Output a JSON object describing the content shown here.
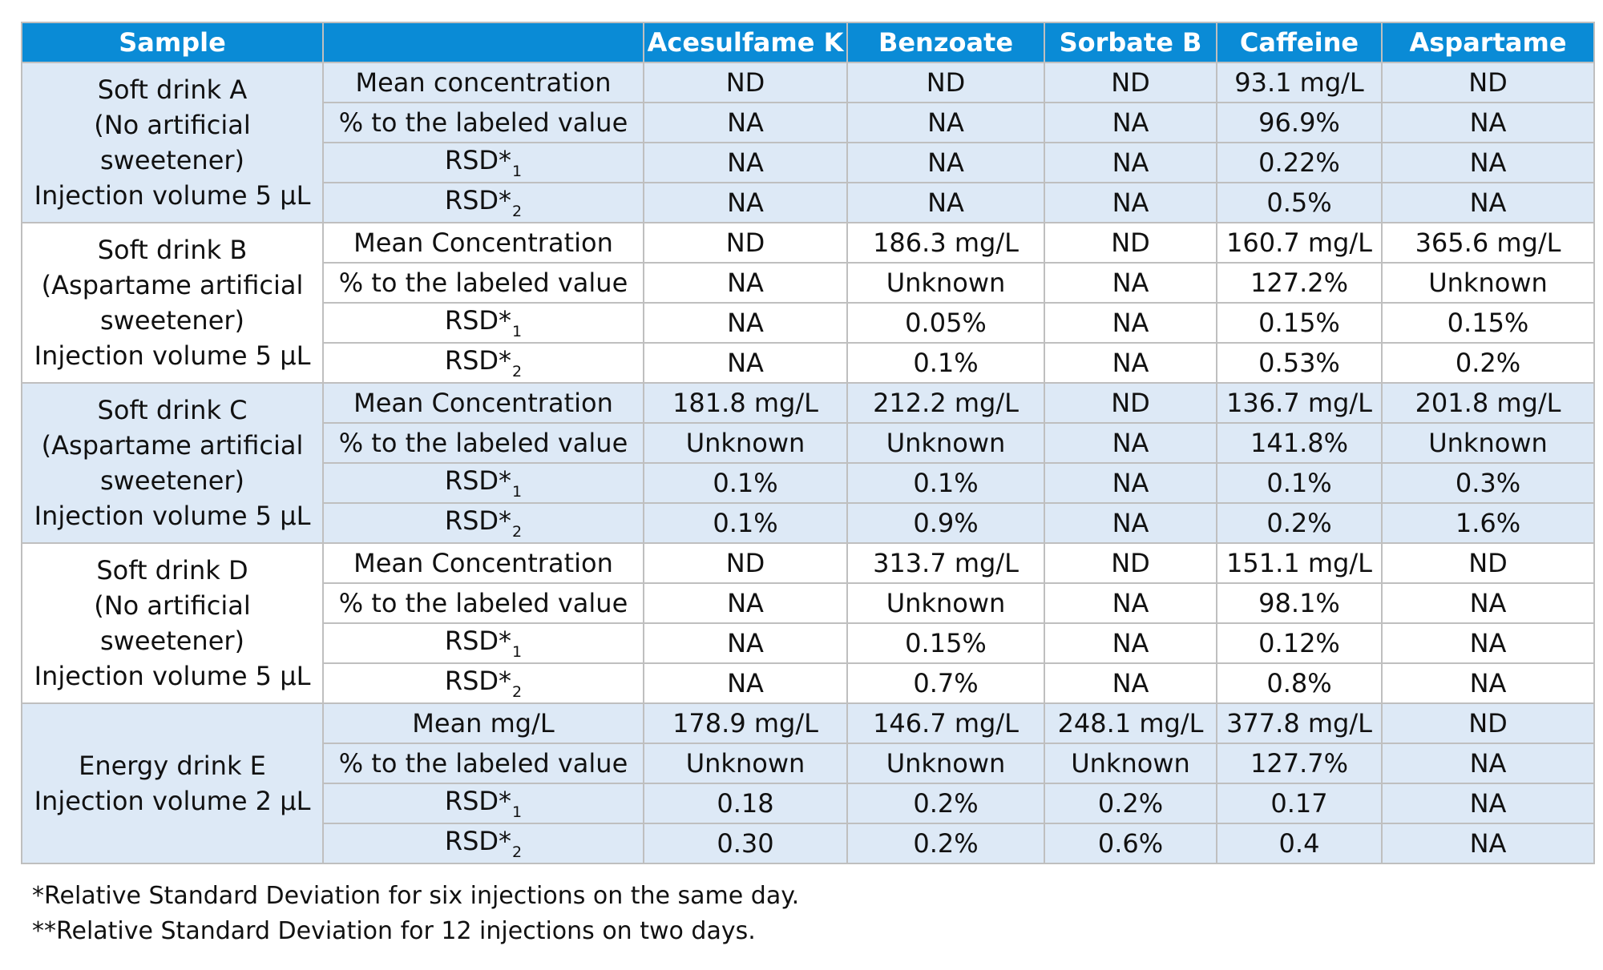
{
  "header": [
    "Sample",
    "",
    "Acesulfame K",
    "Benzoate",
    "Sorbate B",
    "Caffeine",
    "Aspartame"
  ],
  "groups": [
    {
      "sample_lines": [
        "Soft drink A",
        "(No artificial",
        "sweetener)",
        "Injection volume 5 µL"
      ],
      "band": "shaded",
      "rows": [
        {
          "label": "Mean concentration",
          "sub": "",
          "values": [
            "ND",
            "ND",
            "ND",
            "93.1 mg/L",
            "ND"
          ]
        },
        {
          "label": "% to the labeled value",
          "sub": "",
          "values": [
            "NA",
            "NA",
            "NA",
            "96.9%",
            "NA"
          ]
        },
        {
          "label": "RSD*",
          "sub": "1",
          "values": [
            "NA",
            "NA",
            "NA",
            "0.22%",
            "NA"
          ]
        },
        {
          "label": "RSD*",
          "sub": "2",
          "values": [
            "NA",
            "NA",
            "NA",
            "0.5%",
            "NA"
          ]
        }
      ]
    },
    {
      "sample_lines": [
        "Soft drink B",
        "(Aspartame artificial",
        "sweetener)",
        "Injection volume 5 µL"
      ],
      "band": "white",
      "rows": [
        {
          "label": "Mean Concentration",
          "sub": "",
          "values": [
            "ND",
            "186.3 mg/L",
            "ND",
            "160.7 mg/L",
            "365.6 mg/L"
          ]
        },
        {
          "label": "% to the labeled value",
          "sub": "",
          "values": [
            "NA",
            "Unknown",
            "NA",
            "127.2%",
            "Unknown"
          ]
        },
        {
          "label": "RSD*",
          "sub": "1",
          "values": [
            "NA",
            "0.05%",
            "NA",
            "0.15%",
            "0.15%"
          ]
        },
        {
          "label": "RSD*",
          "sub": "2",
          "values": [
            "NA",
            "0.1%",
            "NA",
            "0.53%",
            "0.2%"
          ]
        }
      ]
    },
    {
      "sample_lines": [
        "Soft drink C",
        "(Aspartame artificial",
        "sweetener)",
        "Injection volume 5 µL"
      ],
      "band": "shaded",
      "rows": [
        {
          "label": "Mean Concentration",
          "sub": "",
          "values": [
            "181.8 mg/L",
            "212.2 mg/L",
            "ND",
            "136.7 mg/L",
            "201.8 mg/L"
          ]
        },
        {
          "label": "% to the labeled value",
          "sub": "",
          "values": [
            "Unknown",
            "Unknown",
            "NA",
            "141.8%",
            "Unknown"
          ]
        },
        {
          "label": "RSD*",
          "sub": "1",
          "values": [
            "0.1%",
            "0.1%",
            "NA",
            "0.1%",
            "0.3%"
          ]
        },
        {
          "label": "RSD*",
          "sub": "2",
          "values": [
            "0.1%",
            "0.9%",
            "NA",
            "0.2%",
            "1.6%"
          ]
        }
      ]
    },
    {
      "sample_lines": [
        "Soft drink D",
        "(No artificial",
        "sweetener)",
        "Injection volume 5 µL"
      ],
      "band": "white",
      "rows": [
        {
          "label": "Mean Concentration",
          "sub": "",
          "values": [
            "ND",
            "313.7 mg/L",
            "ND",
            "151.1 mg/L",
            "ND"
          ]
        },
        {
          "label": "% to the labeled value",
          "sub": "",
          "values": [
            "NA",
            "Unknown",
            "NA",
            "98.1%",
            "NA"
          ]
        },
        {
          "label": "RSD*",
          "sub": "1",
          "values": [
            "NA",
            "0.15%",
            "NA",
            "0.12%",
            "NA"
          ]
        },
        {
          "label": "RSD*",
          "sub": "2",
          "values": [
            "NA",
            "0.7%",
            "NA",
            "0.8%",
            "NA"
          ]
        }
      ]
    },
    {
      "sample_lines": [
        "Energy drink E",
        "Injection volume 2 µL"
      ],
      "band": "shaded",
      "rows": [
        {
          "label": "Mean mg/L",
          "sub": "",
          "values": [
            "178.9 mg/L",
            "146.7 mg/L",
            "248.1 mg/L",
            "377.8 mg/L",
            "ND"
          ]
        },
        {
          "label": "% to the labeled value",
          "sub": "",
          "values": [
            "Unknown",
            "Unknown",
            "Unknown",
            "127.7%",
            "NA"
          ]
        },
        {
          "label": "RSD*",
          "sub": "1",
          "values": [
            "0.18",
            "0.2%",
            "0.2%",
            "0.17",
            "NA"
          ]
        },
        {
          "label": "RSD*",
          "sub": "2",
          "values": [
            "0.30",
            "0.2%",
            "0.6%",
            "0.4",
            "NA"
          ]
        }
      ]
    }
  ],
  "footnotes": [
    "*Relative Standard Deviation for six injections on the same day.",
    "**Relative Standard Deviation for 12 injections on two days."
  ]
}
